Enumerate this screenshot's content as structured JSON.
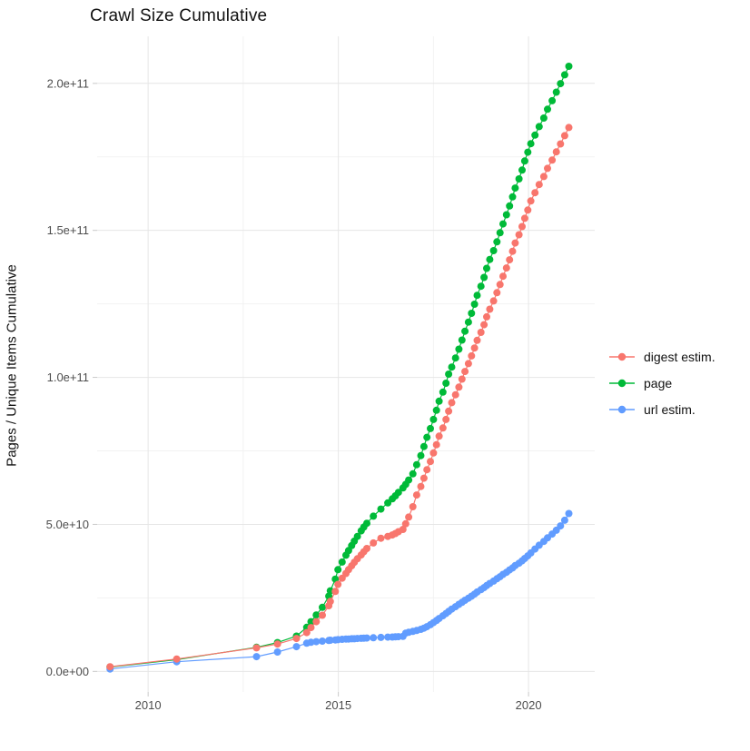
{
  "figure": {
    "title": "Crawl Size Cumulative",
    "background_color": "#ffffff"
  },
  "chart_data": {
    "type": "line",
    "title": "Crawl Size Cumulative",
    "xlabel": "",
    "ylabel": "Pages / Unique Items Cumulative",
    "x_unit": "decimal year (crawl date)",
    "value_unit": "billions (multiply by 1e9 to get pages / unique items)",
    "grid": {
      "major_color": "#e6e6e6",
      "minor_color": "#f2f2f2",
      "tick_color": "#c9c9c9",
      "label_color": "#4d4d4d"
    },
    "legend": {
      "position": "right",
      "entries": [
        "digest estim.",
        "page",
        "url estim."
      ]
    },
    "draw_order": [
      "page",
      "url estim.",
      "digest estim."
    ],
    "x_axis": {
      "domain": [
        2008.66,
        2021.74
      ],
      "major_ticks": [
        {
          "value": 2010,
          "label": "2010"
        },
        {
          "value": 2015,
          "label": "2015"
        },
        {
          "value": 2020,
          "label": "2020"
        }
      ],
      "minor_ticks": [
        2012.5,
        2017.5
      ]
    },
    "y_axis": {
      "domain_billions": [
        -7,
        216
      ],
      "major_ticks": [
        {
          "value": 0,
          "label": "0.0e+00"
        },
        {
          "value": 50,
          "label": "5.0e+10"
        },
        {
          "value": 100,
          "label": "1.0e+11"
        },
        {
          "value": 150,
          "label": "1.5e+11"
        },
        {
          "value": 200,
          "label": "2.0e+11"
        }
      ],
      "minor_ticks": [
        25,
        75,
        125,
        175
      ]
    },
    "x": [
      2009.0,
      2010.75,
      2012.85,
      2013.4,
      2013.9,
      2014.17,
      2014.28,
      2014.42,
      2014.58,
      2014.75,
      2014.79,
      2014.92,
      2014.99,
      2015.1,
      2015.2,
      2015.27,
      2015.35,
      2015.42,
      2015.5,
      2015.6,
      2015.67,
      2015.75,
      2015.92,
      2016.12,
      2016.3,
      2016.42,
      2016.5,
      2016.58,
      2016.7,
      2016.77,
      2016.85,
      2016.96,
      2017.06,
      2017.17,
      2017.25,
      2017.33,
      2017.42,
      2017.5,
      2017.58,
      2017.65,
      2017.75,
      2017.83,
      2017.9,
      2017.98,
      2018.08,
      2018.17,
      2018.25,
      2018.33,
      2018.42,
      2018.5,
      2018.58,
      2018.65,
      2018.75,
      2018.83,
      2018.9,
      2018.98,
      2019.08,
      2019.17,
      2019.25,
      2019.33,
      2019.42,
      2019.5,
      2019.58,
      2019.65,
      2019.75,
      2019.83,
      2019.9,
      2019.98,
      2020.06,
      2020.17,
      2020.28,
      2020.4,
      2020.5,
      2020.62,
      2020.73,
      2020.84,
      2020.95,
      2021.06
    ],
    "series": [
      {
        "name": "digest estim.",
        "color": "#F8766D",
        "values": [
          1.6,
          4.2,
          8.0,
          9.3,
          11.2,
          13.2,
          14.9,
          16.9,
          19.1,
          22.3,
          23.8,
          27.2,
          29.6,
          31.7,
          33.3,
          34.6,
          35.9,
          37.1,
          38.3,
          39.6,
          40.7,
          41.8,
          43.7,
          45.3,
          45.9,
          46.4,
          46.9,
          47.5,
          48.3,
          50.2,
          52.5,
          56.0,
          60.0,
          62.9,
          65.7,
          68.6,
          71.4,
          74.3,
          77.1,
          80.0,
          82.8,
          85.7,
          88.5,
          91.4,
          94.1,
          96.7,
          99.4,
          102.0,
          104.7,
          107.3,
          110.0,
          112.6,
          115.3,
          117.9,
          120.6,
          123.2,
          126.0,
          128.8,
          131.6,
          134.4,
          137.2,
          140.0,
          142.9,
          145.7,
          148.5,
          151.3,
          154.1,
          156.9,
          160.0,
          162.8,
          165.6,
          168.3,
          171.1,
          173.9,
          176.7,
          179.4,
          182.2,
          185.0
        ]
      },
      {
        "name": "page",
        "color": "#00BA38",
        "values": [
          1.5,
          4.0,
          8.2,
          9.8,
          12.0,
          15.0,
          16.9,
          19.2,
          21.8,
          25.6,
          27.4,
          31.4,
          34.6,
          37.2,
          39.5,
          41.1,
          42.8,
          44.3,
          45.9,
          47.8,
          49.1,
          50.4,
          52.8,
          55.2,
          57.3,
          58.7,
          59.7,
          60.9,
          62.4,
          63.6,
          65.1,
          67.2,
          70.3,
          73.4,
          76.5,
          79.6,
          82.6,
          85.7,
          88.8,
          91.9,
          95.0,
          98.0,
          101.1,
          103.5,
          106.6,
          109.6,
          112.7,
          115.7,
          118.8,
          121.8,
          124.9,
          127.9,
          131.0,
          134.0,
          137.1,
          140.1,
          143.1,
          146.1,
          149.2,
          152.2,
          155.3,
          158.3,
          161.4,
          164.4,
          167.5,
          170.5,
          173.6,
          176.6,
          179.5,
          182.4,
          185.3,
          188.2,
          191.2,
          194.1,
          197.0,
          199.9,
          202.9,
          205.8
        ]
      },
      {
        "name": "url estim.",
        "color": "#619CFF",
        "values": [
          0.8,
          3.3,
          5.0,
          6.6,
          8.4,
          9.6,
          9.9,
          10.1,
          10.3,
          10.5,
          10.6,
          10.7,
          10.8,
          10.9,
          11.0,
          11.0,
          11.1,
          11.1,
          11.2,
          11.25,
          11.3,
          11.35,
          11.45,
          11.55,
          11.65,
          11.7,
          11.75,
          11.8,
          11.9,
          13.0,
          13.3,
          13.6,
          13.9,
          14.3,
          14.7,
          15.2,
          15.9,
          16.6,
          17.3,
          18.0,
          18.9,
          19.7,
          20.4,
          21.2,
          22.0,
          22.8,
          23.5,
          24.2,
          24.9,
          25.6,
          26.3,
          27.0,
          27.8,
          28.5,
          29.2,
          29.9,
          30.7,
          31.5,
          32.2,
          33.0,
          33.7,
          34.5,
          35.2,
          36.0,
          36.8,
          37.6,
          38.4,
          39.3,
          40.3,
          41.6,
          42.9,
          44.2,
          45.4,
          46.7,
          48.0,
          49.5,
          51.4,
          53.7
        ]
      }
    ]
  }
}
